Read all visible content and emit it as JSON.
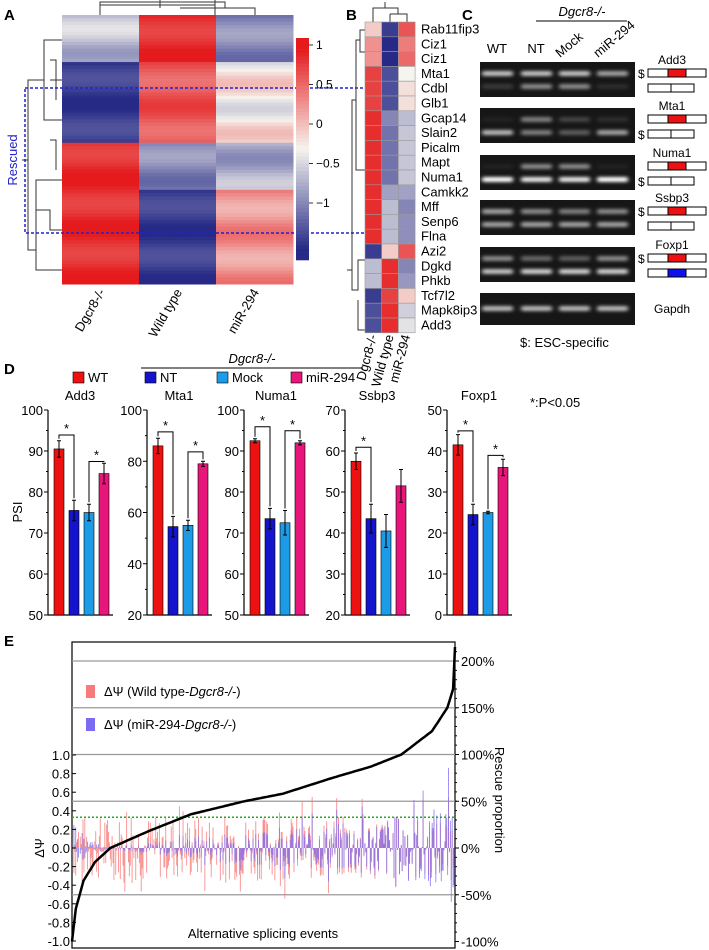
{
  "panels": {
    "a": "A",
    "b": "B",
    "c": "C",
    "d": "D",
    "e": "E"
  },
  "colors": {
    "neg": "#262a86",
    "mid": "#f6f4ee",
    "pos": "#e41a1c",
    "wt": "#ee1111",
    "nt": "#1414cc",
    "mock": "#1c9be6",
    "mir": "#e8157a",
    "rescued_box": "#2222cc",
    "pink": "#f77b7b",
    "purple": "#7a6cf2",
    "threshold": "#22aa22"
  },
  "chart_data": [
    {
      "type": "heatmap",
      "panel": "A",
      "columns": [
        "Dgcr8-/-",
        "Wild type",
        "miR-294"
      ],
      "colorbar_ticks": [
        "1",
        "0.5",
        "0",
        "−0.5",
        "−1"
      ],
      "colorbar_range": [
        -1.2,
        1.2
      ],
      "annotation": "Rescued",
      "row_blocks": [
        {
          "rows": 14,
          "values": [
            -0.3,
            1.0,
            -0.6
          ]
        },
        {
          "rows": 24,
          "values": [
            -1.0,
            0.8,
            0.05
          ]
        },
        {
          "rows": 14,
          "values": [
            1.0,
            -0.6,
            -0.4
          ]
        },
        {
          "rows": 28,
          "values": [
            1.0,
            -1.0,
            0.5
          ]
        }
      ]
    },
    {
      "type": "heatmap",
      "panel": "B",
      "columns": [
        "Dgcr8-/-",
        "Wild type",
        "miR-294"
      ],
      "rows": [
        {
          "gene": "Rab11fip3",
          "values": [
            0.2,
            -1.0,
            0.8
          ]
        },
        {
          "gene": "Ciz1",
          "values": [
            0.5,
            -1.1,
            0.6
          ]
        },
        {
          "gene": "Ciz1",
          "values": [
            0.5,
            -1.1,
            0.7
          ]
        },
        {
          "gene": "Mta1",
          "values": [
            0.9,
            -0.9,
            0.0
          ]
        },
        {
          "gene": "Cdbl",
          "values": [
            0.9,
            -0.9,
            0.1
          ]
        },
        {
          "gene": "Glb1",
          "values": [
            0.9,
            -0.9,
            0.1
          ]
        },
        {
          "gene": "Gcap14",
          "values": [
            1.0,
            -0.6,
            -0.3
          ]
        },
        {
          "gene": "Slain2",
          "values": [
            1.0,
            -0.7,
            -0.25
          ]
        },
        {
          "gene": "Picalm",
          "values": [
            1.0,
            -0.7,
            -0.25
          ]
        },
        {
          "gene": "Mapt",
          "values": [
            1.0,
            -0.7,
            -0.25
          ]
        },
        {
          "gene": "Numa1",
          "values": [
            1.0,
            -0.7,
            -0.25
          ]
        },
        {
          "gene": "Camkk2",
          "values": [
            1.0,
            -0.45,
            -0.45
          ]
        },
        {
          "gene": "Mff",
          "values": [
            1.0,
            -0.3,
            -0.6
          ]
        },
        {
          "gene": "Senp6",
          "values": [
            1.0,
            -0.3,
            -0.55
          ]
        },
        {
          "gene": "Flna",
          "values": [
            1.0,
            -0.3,
            -0.55
          ]
        },
        {
          "gene": "Azi2",
          "values": [
            -1.0,
            0.2,
            0.8
          ]
        },
        {
          "gene": "Dgkd",
          "values": [
            -0.3,
            1.0,
            -0.6
          ]
        },
        {
          "gene": "Phkb",
          "values": [
            -0.3,
            1.0,
            -0.5
          ]
        },
        {
          "gene": "Tcf7l2",
          "values": [
            -1.0,
            0.9,
            0.2
          ]
        },
        {
          "gene": "Mapk8ip3",
          "values": [
            -0.9,
            1.0,
            -0.2
          ]
        },
        {
          "gene": "Add3",
          "values": [
            -0.9,
            1.0,
            -0.1
          ]
        }
      ]
    },
    {
      "type": "bar",
      "panel": "D",
      "group_label": "Dgcr8-/-",
      "significance_label": "*:P<0.05",
      "ylabel": "PSI",
      "legend": [
        "WT",
        "NT",
        "Mock",
        "miR-294"
      ],
      "charts": [
        {
          "title": "Add3",
          "ylim": [
            50,
            100
          ],
          "ticks": [
            50,
            60,
            70,
            80,
            90,
            100
          ],
          "values": [
            90.5,
            75.5,
            75,
            84.5
          ],
          "errors": [
            2,
            2.5,
            2,
            2.5
          ],
          "sig": [
            [
              0,
              1
            ],
            [
              2,
              3
            ]
          ]
        },
        {
          "title": "Mta1",
          "ylim": [
            20,
            100
          ],
          "ticks": [
            20,
            40,
            60,
            80,
            100
          ],
          "values": [
            86,
            54.5,
            55,
            79
          ],
          "errors": [
            3,
            4,
            2,
            1
          ],
          "sig": [
            [
              0,
              1
            ],
            [
              2,
              3
            ]
          ]
        },
        {
          "title": "Numa1",
          "ylim": [
            50,
            100
          ],
          "ticks": [
            50,
            60,
            70,
            80,
            90,
            100
          ],
          "values": [
            92.5,
            73.5,
            72.5,
            92
          ],
          "errors": [
            0.5,
            2.5,
            3,
            0.5
          ],
          "sig": [
            [
              0,
              1
            ],
            [
              2,
              3
            ]
          ]
        },
        {
          "title": "Ssbp3",
          "ylim": [
            20,
            70
          ],
          "ticks": [
            20,
            30,
            40,
            50,
            60,
            70
          ],
          "values": [
            57.5,
            43.5,
            40.5,
            51.5
          ],
          "errors": [
            2,
            3.5,
            4,
            4
          ],
          "sig": [
            [
              0,
              1
            ]
          ]
        },
        {
          "title": "Foxp1",
          "ylim": [
            0,
            50
          ],
          "ticks": [
            0,
            10,
            20,
            30,
            40,
            50
          ],
          "values": [
            41.5,
            24.5,
            25,
            36
          ],
          "errors": [
            2.5,
            2.5,
            0.3,
            2
          ],
          "sig": [
            [
              0,
              1
            ],
            [
              2,
              3
            ]
          ]
        }
      ]
    },
    {
      "type": "line",
      "panel": "E",
      "xlabel": "Alternative splicing events",
      "ylabel": "ΔΨ",
      "ylabel_right": "Rescue proportion",
      "ylim": [
        -1.0,
        1.0
      ],
      "yticks": [
        "1.0",
        "0.8",
        "0.6",
        "0.4",
        "0.2",
        "0.0",
        "-0.2",
        "-0.4",
        "-0.6",
        "-0.8",
        "-1.0"
      ],
      "ylim_right": [
        -100,
        200
      ],
      "yticks_right": [
        "200%",
        "150%",
        "100%",
        "50%",
        "0%",
        "-50%",
        "-100%"
      ],
      "threshold": 0.33,
      "legend": [
        {
          "prefix": "ΔΨ (Wild type-",
          "italic": "Dgcr8-/-",
          "suffix": ")"
        },
        {
          "prefix": "ΔΨ (miR-294-",
          "italic": "Dgcr8-/-",
          "suffix": ")"
        }
      ],
      "rescue_curve": [
        [
          0,
          -100
        ],
        [
          0.01,
          -65
        ],
        [
          0.03,
          -35
        ],
        [
          0.06,
          -15
        ],
        [
          0.1,
          0
        ],
        [
          0.2,
          18
        ],
        [
          0.31,
          36
        ],
        [
          0.45,
          50
        ],
        [
          0.55,
          58
        ],
        [
          0.68,
          75
        ],
        [
          0.78,
          87
        ],
        [
          0.86,
          100
        ],
        [
          0.94,
          125
        ],
        [
          0.98,
          150
        ],
        [
          0.995,
          170
        ],
        [
          1,
          215
        ]
      ]
    }
  ],
  "gel": {
    "group_label": "Dgcr8-/-",
    "lanes": [
      "WT",
      "NT",
      "Mock",
      "miR-294"
    ],
    "genes": [
      "Add3",
      "Mta1",
      "Numa1",
      "Ssbp3",
      "Foxp1",
      "Gapdh"
    ],
    "esc_marker": "$",
    "footnote": "$: ESC-specific",
    "bands": [
      [
        [
          0.75,
          0.15
        ],
        [
          0.75,
          0.5
        ],
        [
          0.75,
          0.5
        ],
        [
          0.6,
          0.1
        ]
      ],
      [
        [
          0.05,
          0.7
        ],
        [
          0.45,
          0.45
        ],
        [
          0.2,
          0.3
        ],
        [
          0.1,
          0.6
        ]
      ],
      [
        [
          0.05,
          1.0
        ],
        [
          0.5,
          0.9
        ],
        [
          0.5,
          0.9
        ],
        [
          0.05,
          1.0
        ]
      ],
      [
        [
          0.6,
          0.6
        ],
        [
          0.5,
          0.6
        ],
        [
          0.45,
          0.6
        ],
        [
          0.5,
          0.6
        ]
      ],
      [
        [
          0.5,
          0.75
        ],
        [
          0.35,
          0.8
        ],
        [
          0.3,
          0.8
        ],
        [
          0.5,
          0.8
        ]
      ],
      [
        [
          0.7,
          0
        ],
        [
          0.7,
          0
        ],
        [
          0.7,
          0
        ],
        [
          0.7,
          0
        ]
      ]
    ],
    "esc_position": [
      "top",
      "bottom",
      "bottom",
      "top",
      "top",
      ""
    ],
    "exon_color": [
      "red",
      "red",
      "red",
      "red",
      "red",
      ""
    ],
    "alt_exon": [
      false,
      false,
      false,
      false,
      true,
      false
    ]
  }
}
